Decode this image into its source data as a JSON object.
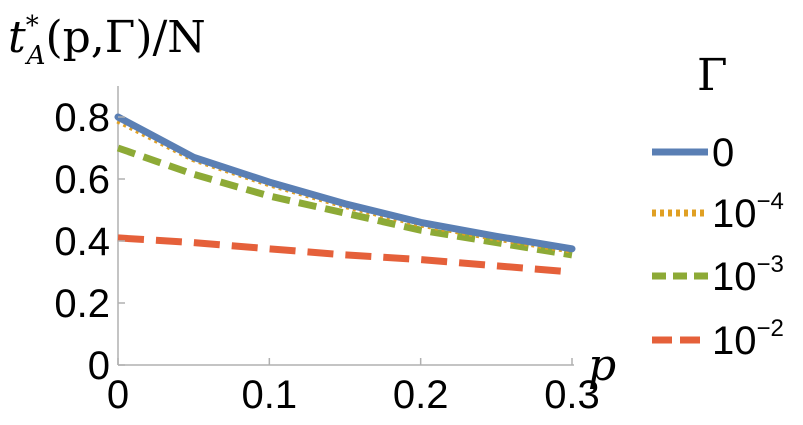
{
  "chart_data": {
    "type": "line",
    "title": "",
    "ylabel": "t*A(p,Γ)/N",
    "ylabel_parts": {
      "t": "t",
      "sup": "*",
      "sub": "A",
      "rest": "(p,Γ)/N"
    },
    "xlabel": "p",
    "xlim": [
      0,
      0.3
    ],
    "ylim": [
      0,
      0.9
    ],
    "xticks": [
      0,
      0.1,
      0.2,
      0.3
    ],
    "xtick_labels": [
      "0",
      "0.1",
      "0.2",
      "0.3"
    ],
    "yticks": [
      0,
      0.2,
      0.4,
      0.6,
      0.8
    ],
    "ytick_labels": [
      "0",
      "0.2",
      "0.4",
      "0.6",
      "0.8"
    ],
    "grid": false,
    "legend": {
      "title": "Γ",
      "placement": "right"
    },
    "x": [
      0,
      0.05,
      0.1,
      0.15,
      0.2,
      0.25,
      0.3
    ],
    "series": [
      {
        "name": "0",
        "label_base": "0",
        "label_exp": "",
        "color": "#5A7FB4",
        "dash": "solid",
        "values": [
          0.8,
          0.67,
          0.59,
          0.52,
          0.46,
          0.415,
          0.375
        ]
      },
      {
        "name": "10^-4",
        "label_base": "10",
        "label_exp": "−4",
        "color": "#E0A023",
        "dash": "dotted",
        "values": [
          0.79,
          0.665,
          0.585,
          0.515,
          0.455,
          0.41,
          0.37
        ]
      },
      {
        "name": "10^-3",
        "label_base": "10",
        "label_exp": "−3",
        "color": "#8DAA36",
        "dash": "dashed",
        "values": [
          0.7,
          0.615,
          0.545,
          0.49,
          0.435,
          0.395,
          0.355
        ]
      },
      {
        "name": "10^-2",
        "label_base": "10",
        "label_exp": "−2",
        "color": "#E5603A",
        "dash": "longdash",
        "values": [
          0.41,
          0.395,
          0.375,
          0.355,
          0.34,
          0.32,
          0.3
        ]
      }
    ]
  }
}
